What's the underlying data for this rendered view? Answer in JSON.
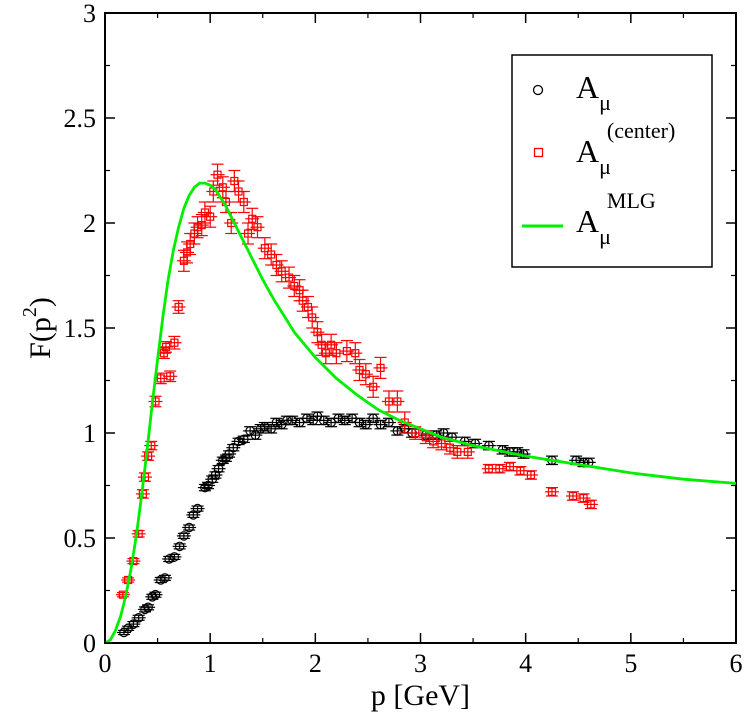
{
  "chart_data": {
    "type": "scatter",
    "xlabel": "p [GeV]",
    "ylabel_base": "F(p",
    "ylabel_sup": "2",
    "ylabel_close": ")",
    "xlim": [
      0,
      6
    ],
    "ylim": [
      0,
      3
    ],
    "x_ticks": [
      "0",
      "1",
      "2",
      "3",
      "4",
      "5",
      "6"
    ],
    "y_ticks": [
      "0",
      "0.5",
      "1",
      "1.5",
      "2",
      "2.5",
      "3"
    ],
    "grid": false,
    "legend_position": "top-right",
    "legend": [
      {
        "base": "A",
        "sub": "μ",
        "sup": "",
        "marker": "circle"
      },
      {
        "base": "A",
        "sub": "μ",
        "sup": "(center)",
        "marker": "square"
      },
      {
        "base": "A",
        "sub": "μ",
        "sup": "MLG",
        "marker": "line"
      }
    ],
    "series": [
      {
        "marker": "circle",
        "color": "#000000",
        "points": [
          [
            0.18,
            0.05,
            0.01
          ],
          [
            0.22,
            0.07,
            0.01
          ],
          [
            0.27,
            0.09,
            0.012
          ],
          [
            0.32,
            0.12,
            0.012
          ],
          [
            0.38,
            0.16,
            0.012
          ],
          [
            0.41,
            0.17,
            0.012
          ],
          [
            0.45,
            0.22,
            0.012
          ],
          [
            0.48,
            0.23,
            0.012
          ],
          [
            0.53,
            0.3,
            0.012
          ],
          [
            0.57,
            0.31,
            0.012
          ],
          [
            0.61,
            0.4,
            0.012
          ],
          [
            0.66,
            0.41,
            0.012
          ],
          [
            0.71,
            0.46,
            0.012
          ],
          [
            0.75,
            0.51,
            0.012
          ],
          [
            0.8,
            0.55,
            0.012
          ],
          [
            0.84,
            0.61,
            0.012
          ],
          [
            0.88,
            0.64,
            0.012
          ],
          [
            0.95,
            0.74,
            0.015
          ],
          [
            0.98,
            0.75,
            0.015
          ],
          [
            1.02,
            0.78,
            0.015
          ],
          [
            1.05,
            0.8,
            0.015
          ],
          [
            1.08,
            0.83,
            0.015
          ],
          [
            1.12,
            0.87,
            0.015
          ],
          [
            1.15,
            0.88,
            0.015
          ],
          [
            1.18,
            0.9,
            0.015
          ],
          [
            1.22,
            0.93,
            0.015
          ],
          [
            1.27,
            0.96,
            0.015
          ],
          [
            1.32,
            0.97,
            0.015
          ],
          [
            1.38,
            1.01,
            0.02
          ],
          [
            1.43,
            0.99,
            0.02
          ],
          [
            1.48,
            1.02,
            0.02
          ],
          [
            1.52,
            1.03,
            0.02
          ],
          [
            1.58,
            1.02,
            0.02
          ],
          [
            1.63,
            1.05,
            0.02
          ],
          [
            1.68,
            1.04,
            0.02
          ],
          [
            1.73,
            1.06,
            0.02
          ],
          [
            1.78,
            1.06,
            0.02
          ],
          [
            1.85,
            1.05,
            0.02
          ],
          [
            1.92,
            1.07,
            0.02
          ],
          [
            1.98,
            1.06,
            0.02
          ],
          [
            2.02,
            1.08,
            0.02
          ],
          [
            2.08,
            1.06,
            0.02
          ],
          [
            2.15,
            1.05,
            0.02
          ],
          [
            2.22,
            1.07,
            0.02
          ],
          [
            2.28,
            1.06,
            0.02
          ],
          [
            2.35,
            1.07,
            0.02
          ],
          [
            2.42,
            1.05,
            0.02
          ],
          [
            2.48,
            1.04,
            0.02
          ],
          [
            2.55,
            1.07,
            0.02
          ],
          [
            2.62,
            1.04,
            0.02
          ],
          [
            2.7,
            1.05,
            0.02
          ],
          [
            2.78,
            1.01,
            0.02
          ],
          [
            2.85,
            1.02,
            0.02
          ],
          [
            2.92,
            1.0,
            0.02
          ],
          [
            3.05,
            0.99,
            0.02
          ],
          [
            3.15,
            0.99,
            0.02
          ],
          [
            3.22,
            1.0,
            0.02
          ],
          [
            3.3,
            0.98,
            0.02
          ],
          [
            3.42,
            0.96,
            0.02
          ],
          [
            3.52,
            0.95,
            0.02
          ],
          [
            3.65,
            0.94,
            0.02
          ],
          [
            3.78,
            0.92,
            0.02
          ],
          [
            3.85,
            0.91,
            0.02
          ],
          [
            3.92,
            0.91,
            0.02
          ],
          [
            3.98,
            0.9,
            0.02
          ],
          [
            4.25,
            0.87,
            0.02
          ],
          [
            4.48,
            0.87,
            0.02
          ],
          [
            4.55,
            0.86,
            0.02
          ],
          [
            4.6,
            0.86,
            0.02
          ]
        ]
      },
      {
        "marker": "square",
        "color": "#ff0000",
        "points": [
          [
            0.17,
            0.23,
            0.01
          ],
          [
            0.22,
            0.3,
            0.01
          ],
          [
            0.27,
            0.39,
            0.012
          ],
          [
            0.32,
            0.52,
            0.015
          ],
          [
            0.36,
            0.71,
            0.02
          ],
          [
            0.38,
            0.79,
            0.02
          ],
          [
            0.41,
            0.89,
            0.02
          ],
          [
            0.44,
            0.94,
            0.02
          ],
          [
            0.48,
            1.15,
            0.025
          ],
          [
            0.53,
            1.26,
            0.025
          ],
          [
            0.56,
            1.38,
            0.025
          ],
          [
            0.58,
            1.41,
            0.025
          ],
          [
            0.62,
            1.27,
            0.025
          ],
          [
            0.66,
            1.43,
            0.03
          ],
          [
            0.7,
            1.6,
            0.03
          ],
          [
            0.75,
            1.82,
            0.05
          ],
          [
            0.78,
            1.86,
            0.05
          ],
          [
            0.81,
            1.9,
            0.05
          ],
          [
            0.85,
            1.95,
            0.05
          ],
          [
            0.88,
            1.98,
            0.05
          ],
          [
            0.92,
            1.99,
            0.05
          ],
          [
            0.95,
            2.05,
            0.05
          ],
          [
            1.0,
            2.03,
            0.05
          ],
          [
            1.03,
            2.15,
            0.05
          ],
          [
            1.07,
            2.23,
            0.05
          ],
          [
            1.12,
            2.17,
            0.05
          ],
          [
            1.15,
            2.1,
            0.05
          ],
          [
            1.2,
            2.0,
            0.05
          ],
          [
            1.23,
            2.2,
            0.05
          ],
          [
            1.27,
            2.15,
            0.05
          ],
          [
            1.32,
            2.1,
            0.05
          ],
          [
            1.36,
            1.95,
            0.05
          ],
          [
            1.4,
            2.02,
            0.05
          ],
          [
            1.45,
            1.98,
            0.05
          ],
          [
            1.52,
            1.88,
            0.05
          ],
          [
            1.58,
            1.85,
            0.05
          ],
          [
            1.63,
            1.8,
            0.05
          ],
          [
            1.68,
            1.77,
            0.05
          ],
          [
            1.75,
            1.74,
            0.05
          ],
          [
            1.8,
            1.7,
            0.05
          ],
          [
            1.85,
            1.68,
            0.05
          ],
          [
            1.88,
            1.63,
            0.05
          ],
          [
            1.93,
            1.6,
            0.05
          ],
          [
            1.97,
            1.55,
            0.05
          ],
          [
            2.02,
            1.48,
            0.05
          ],
          [
            2.06,
            1.42,
            0.05
          ],
          [
            2.1,
            1.38,
            0.05
          ],
          [
            2.15,
            1.42,
            0.05
          ],
          [
            2.2,
            1.38,
            0.05
          ],
          [
            2.3,
            1.39,
            0.05
          ],
          [
            2.38,
            1.38,
            0.05
          ],
          [
            2.42,
            1.3,
            0.05
          ],
          [
            2.48,
            1.28,
            0.05
          ],
          [
            2.55,
            1.22,
            0.05
          ],
          [
            2.62,
            1.31,
            0.05
          ],
          [
            2.7,
            1.15,
            0.05
          ],
          [
            2.78,
            1.15,
            0.05
          ],
          [
            2.85,
            1.05,
            0.05
          ],
          [
            2.95,
            1.0,
            0.03
          ],
          [
            3.05,
            0.98,
            0.03
          ],
          [
            3.12,
            0.96,
            0.03
          ],
          [
            3.2,
            0.95,
            0.03
          ],
          [
            3.28,
            0.93,
            0.03
          ],
          [
            3.35,
            0.91,
            0.03
          ],
          [
            3.45,
            0.91,
            0.03
          ],
          [
            3.65,
            0.83,
            0.02
          ],
          [
            3.75,
            0.83,
            0.02
          ],
          [
            3.85,
            0.84,
            0.02
          ],
          [
            3.95,
            0.82,
            0.02
          ],
          [
            4.05,
            0.8,
            0.02
          ],
          [
            4.25,
            0.72,
            0.02
          ],
          [
            4.45,
            0.7,
            0.02
          ],
          [
            4.55,
            0.69,
            0.02
          ],
          [
            4.62,
            0.66,
            0.02
          ]
        ]
      },
      {
        "marker": "line",
        "color": "#00ee00",
        "points": [
          [
            0,
            0
          ],
          [
            0.05,
            0.015
          ],
          [
            0.1,
            0.06
          ],
          [
            0.15,
            0.13
          ],
          [
            0.2,
            0.23
          ],
          [
            0.25,
            0.36
          ],
          [
            0.3,
            0.52
          ],
          [
            0.35,
            0.71
          ],
          [
            0.4,
            0.92
          ],
          [
            0.45,
            1.14
          ],
          [
            0.5,
            1.35
          ],
          [
            0.55,
            1.55
          ],
          [
            0.6,
            1.73
          ],
          [
            0.65,
            1.87
          ],
          [
            0.7,
            1.98
          ],
          [
            0.75,
            2.07
          ],
          [
            0.8,
            2.13
          ],
          [
            0.85,
            2.17
          ],
          [
            0.9,
            2.19
          ],
          [
            0.95,
            2.19
          ],
          [
            1.0,
            2.18
          ],
          [
            1.05,
            2.16
          ],
          [
            1.1,
            2.12
          ],
          [
            1.15,
            2.08
          ],
          [
            1.2,
            2.03
          ],
          [
            1.3,
            1.93
          ],
          [
            1.4,
            1.83
          ],
          [
            1.5,
            1.73
          ],
          [
            1.6,
            1.64
          ],
          [
            1.7,
            1.56
          ],
          [
            1.8,
            1.48
          ],
          [
            1.9,
            1.42
          ],
          [
            2.0,
            1.36
          ],
          [
            2.2,
            1.26
          ],
          [
            2.4,
            1.18
          ],
          [
            2.6,
            1.11
          ],
          [
            2.8,
            1.06
          ],
          [
            3.0,
            1.02
          ],
          [
            3.2,
            0.98
          ],
          [
            3.5,
            0.94
          ],
          [
            3.8,
            0.91
          ],
          [
            4.0,
            0.89
          ],
          [
            4.5,
            0.85
          ],
          [
            5.0,
            0.81
          ],
          [
            5.5,
            0.78
          ],
          [
            6.0,
            0.76
          ]
        ]
      }
    ]
  }
}
